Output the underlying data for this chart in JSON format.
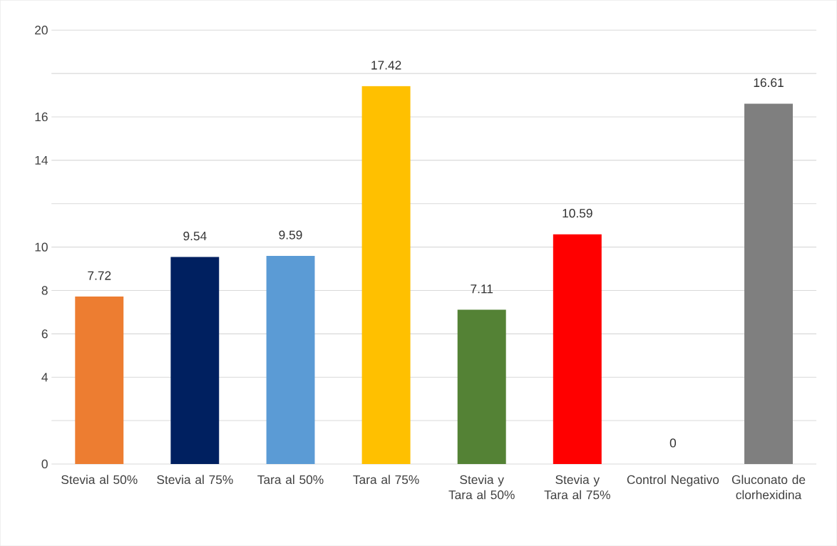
{
  "chart_data": {
    "type": "bar",
    "categories": [
      "Stevia al 50%",
      "Stevia al 75%",
      "Tara al 50%",
      "Tara al 75%",
      "Stevia y Tara al 50%",
      "Stevia y Tara al 75%",
      "Control Negativo",
      "Gluconato de clorhexidina"
    ],
    "values": [
      7.72,
      9.54,
      9.59,
      17.42,
      7.11,
      10.59,
      0,
      16.61
    ],
    "colors": [
      "#ed7d31",
      "#002060",
      "#5b9bd5",
      "#ffc000",
      "#548235",
      "#ff0000",
      "#a5a5a5",
      "#7f7f7f"
    ],
    "ylim": [
      0,
      20
    ],
    "yticks": [
      0,
      {
        "value": 2,
        "label": null
      },
      4,
      6,
      8,
      10,
      {
        "value": 12,
        "label": null
      },
      14,
      16,
      {
        "value": 18,
        "label": null
      },
      20
    ],
    "grid": "y",
    "data_labels": true
  }
}
